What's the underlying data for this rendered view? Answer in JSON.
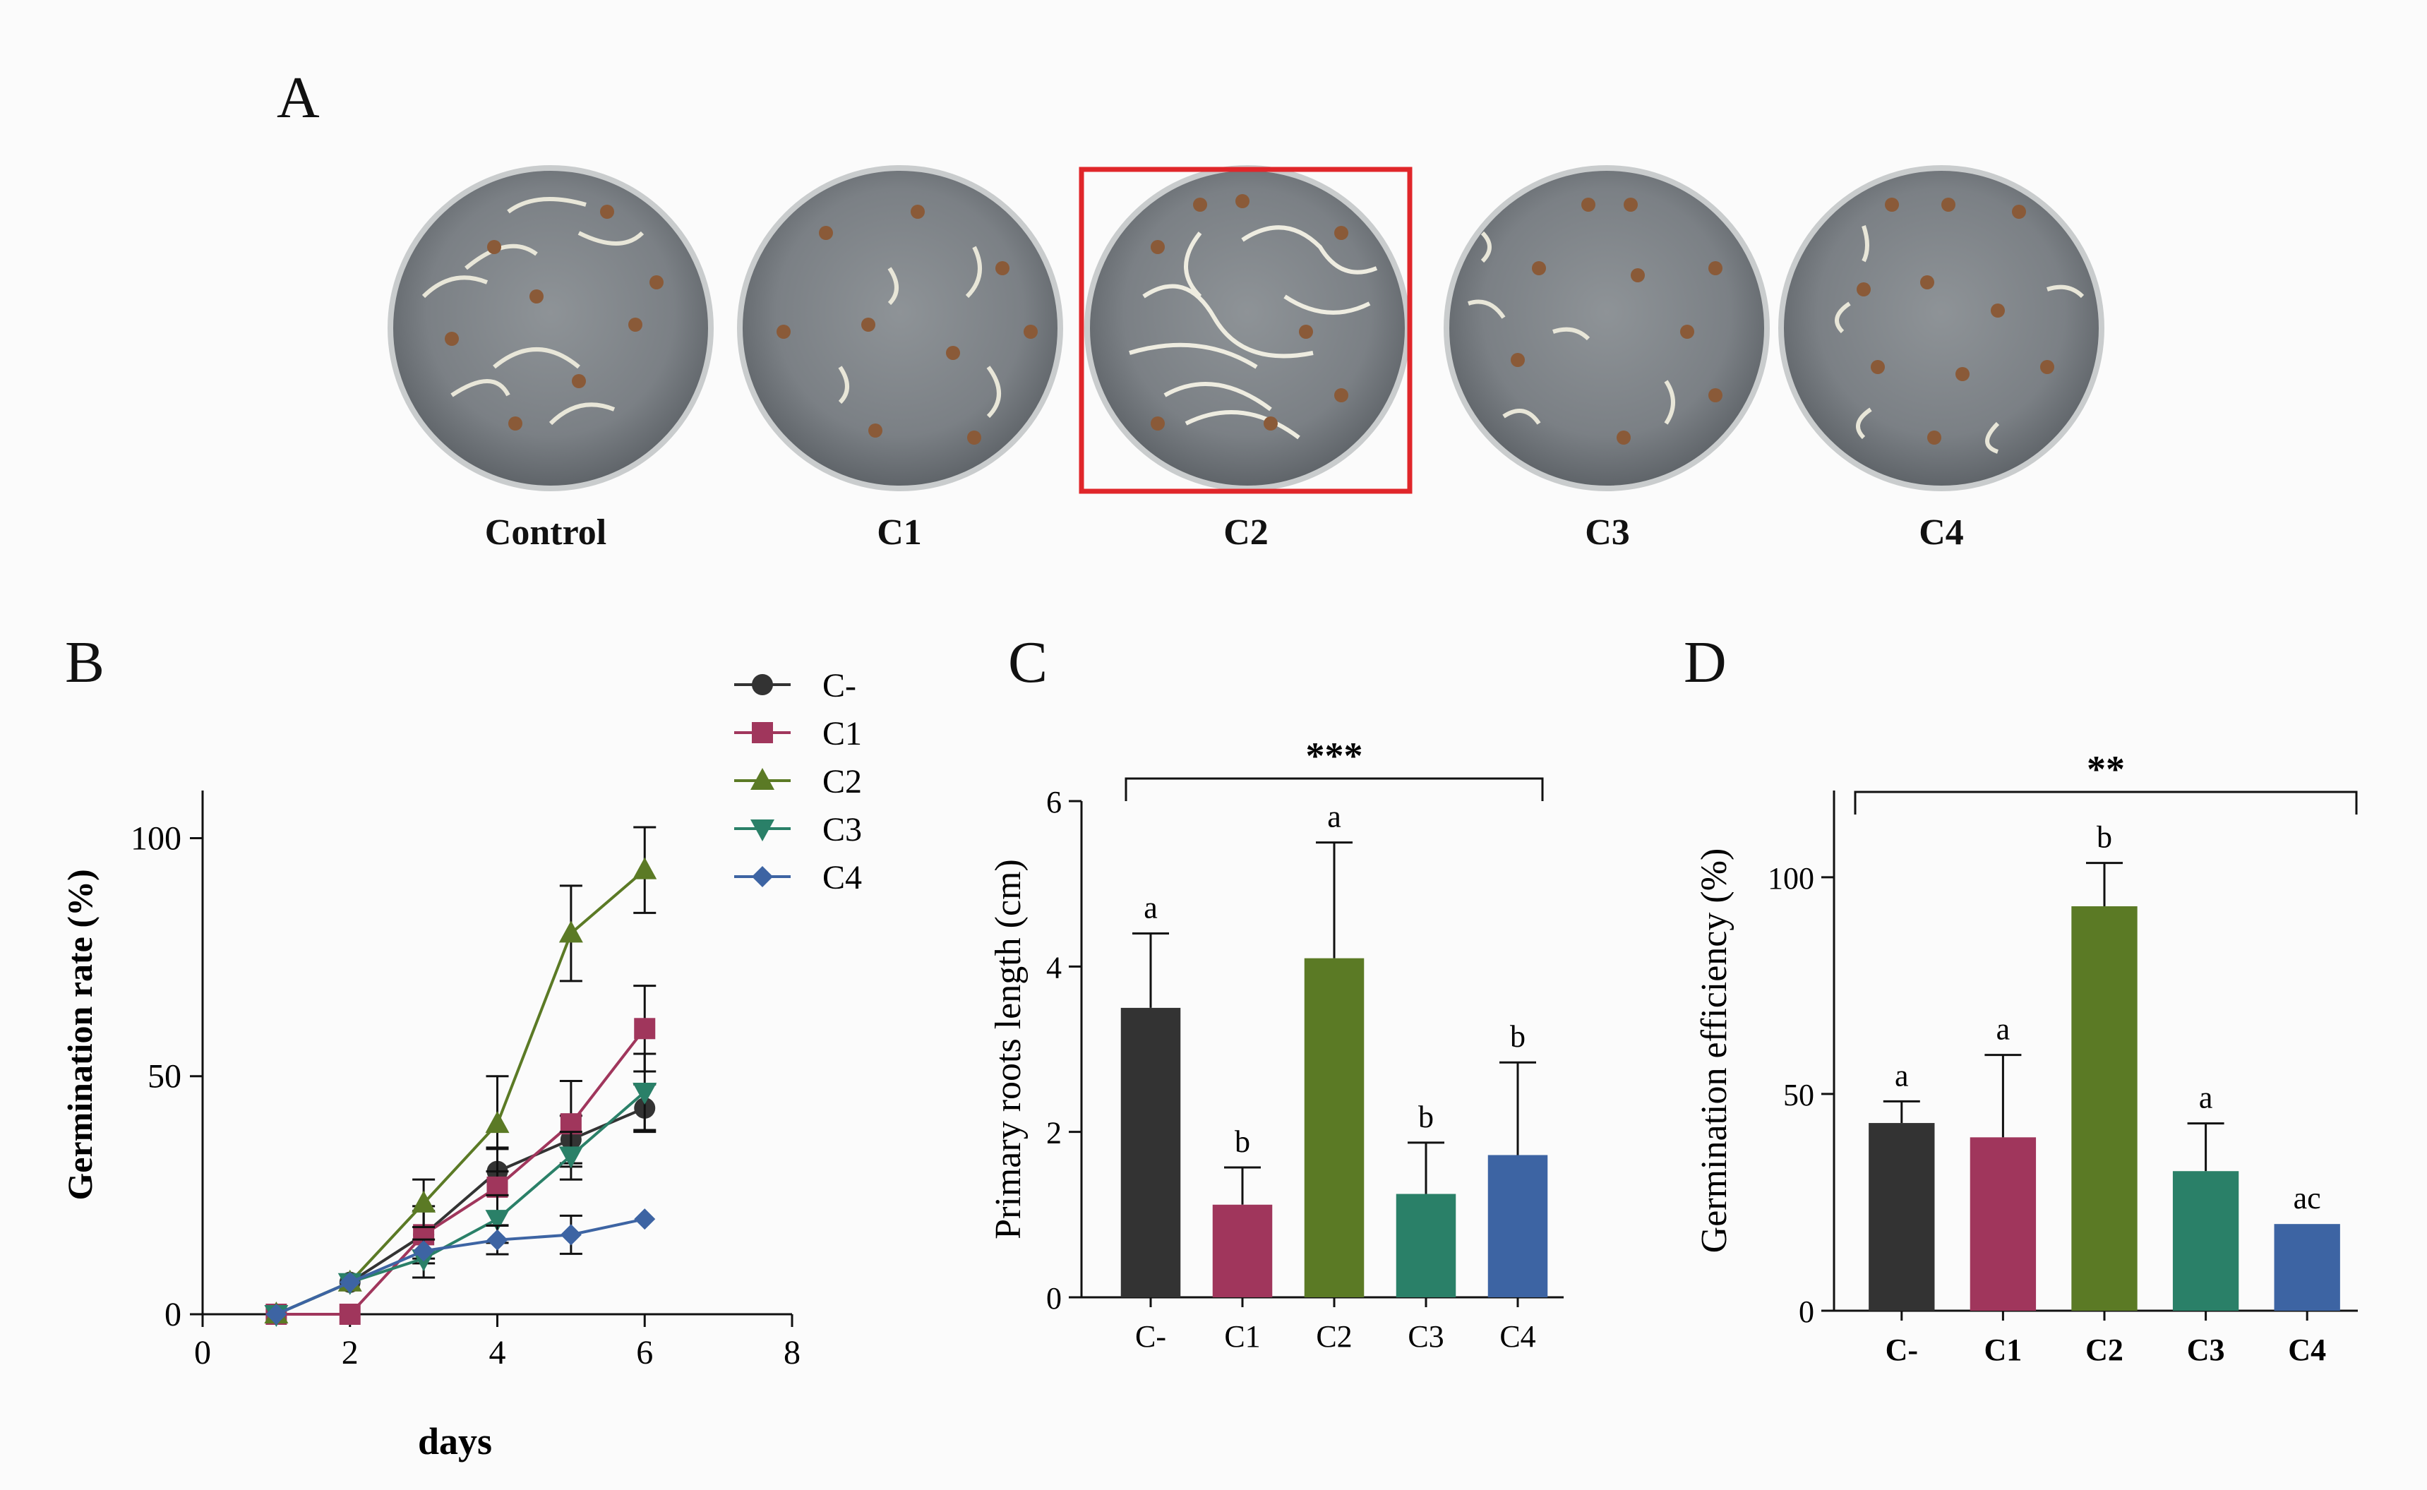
{
  "panels": {
    "A": "A",
    "B": "B",
    "C": "C",
    "D": "D"
  },
  "dishes": {
    "labels": [
      "Control",
      "C1",
      "C2",
      "C3",
      "C4"
    ],
    "highlighted": "C2",
    "highlight_color": "#e0262a"
  },
  "colors": {
    "C-": "#333333",
    "C1": "#a0365c",
    "C2": "#5b7a25",
    "C3": "#2a8068",
    "C4": "#3d64a3"
  },
  "chart_data": [
    {
      "type": "line",
      "panel": "B",
      "xlabel": "days",
      "ylabel": "Germination rate (%)",
      "xlim": [
        0,
        8
      ],
      "ylim": [
        0,
        110
      ],
      "xticks": [
        0,
        2,
        4,
        6,
        8
      ],
      "yticks": [
        0,
        50,
        100
      ],
      "legend_position": "top-right",
      "series": [
        {
          "name": "C-",
          "marker": "circle",
          "x": [
            1,
            2,
            3,
            4,
            5,
            6
          ],
          "values": [
            0,
            6.7,
            16.7,
            30,
            36.7,
            43.3
          ],
          "errors": [
            0,
            0,
            5,
            5,
            5,
            5
          ]
        },
        {
          "name": "C1",
          "marker": "square",
          "x": [
            1,
            2,
            3,
            4,
            5,
            6
          ],
          "values": [
            0,
            0,
            16.7,
            26.7,
            40,
            60
          ],
          "errors": [
            0,
            0,
            6,
            8,
            9,
            9
          ]
        },
        {
          "name": "C2",
          "marker": "triangle-up",
          "x": [
            1,
            2,
            3,
            4,
            5,
            6
          ],
          "values": [
            0,
            6.7,
            23.3,
            40,
            80,
            93.3
          ],
          "errors": [
            0,
            0,
            5,
            10,
            10,
            9
          ]
        },
        {
          "name": "C3",
          "marker": "triangle-down",
          "x": [
            1,
            2,
            3,
            4,
            5,
            6
          ],
          "values": [
            0,
            6.7,
            11.7,
            20,
            33.3,
            46.7
          ],
          "errors": [
            0,
            0,
            4,
            5,
            5,
            8
          ]
        },
        {
          "name": "C4",
          "marker": "diamond",
          "x": [
            1,
            2,
            3,
            4,
            5,
            6
          ],
          "values": [
            0,
            6.7,
            13.3,
            15.6,
            16.7,
            20
          ],
          "errors": [
            0,
            0,
            0,
            3,
            4,
            0
          ]
        }
      ]
    },
    {
      "type": "bar",
      "panel": "C",
      "categories": [
        "C-",
        "C1",
        "C2",
        "C3",
        "C4"
      ],
      "values": [
        3.5,
        1.12,
        4.1,
        1.25,
        1.72
      ],
      "errors": [
        0.9,
        0.45,
        1.4,
        0.62,
        1.12
      ],
      "letters": [
        "a",
        "b",
        "a",
        "b",
        "b"
      ],
      "significance": "***",
      "ylabel": "Primary roots length (cm)",
      "ylim": [
        0,
        6
      ],
      "yticks": [
        0,
        2,
        4,
        6
      ]
    },
    {
      "type": "bar",
      "panel": "D",
      "categories": [
        "C-",
        "C1",
        "C2",
        "C3",
        "C4"
      ],
      "values": [
        43.3,
        40,
        93.3,
        32.2,
        20
      ],
      "errors": [
        5,
        19,
        10,
        11,
        0
      ],
      "letters": [
        "a",
        "a",
        "b",
        "a",
        "ac"
      ],
      "significance": "**",
      "ylabel": "Germination efficiency (%)",
      "ylim": [
        0,
        120
      ],
      "yticks": [
        0,
        50,
        100
      ]
    }
  ]
}
